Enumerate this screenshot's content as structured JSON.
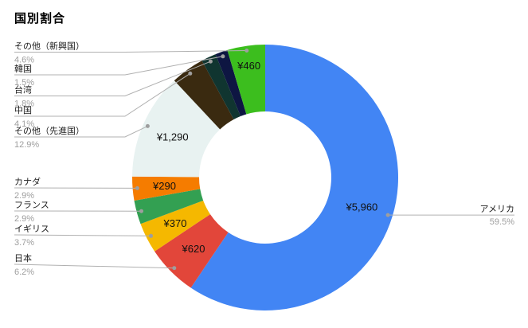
{
  "title": "国別割合",
  "chart_data": {
    "type": "pie",
    "subtype": "donut",
    "title": "国別割合",
    "currency_prefix": "¥",
    "start_angle_deg": 0,
    "direction": "clockwise",
    "slices": [
      {
        "label": "アメリカ",
        "pct": "59.5%",
        "value_label": "¥5,960",
        "color": "#4285F4"
      },
      {
        "label": "日本",
        "pct": "6.2%",
        "value_label": "¥620",
        "color": "#E2463A"
      },
      {
        "label": "イギリス",
        "pct": "3.7%",
        "value_label": "¥370",
        "color": "#F5B800"
      },
      {
        "label": "フランス",
        "pct": "2.9%",
        "value_label": "",
        "color": "#33A052"
      },
      {
        "label": "カナダ",
        "pct": "2.9%",
        "value_label": "¥290",
        "color": "#F57C00"
      },
      {
        "label": "その他（先進国）",
        "pct": "12.9%",
        "value_label": "¥1,290",
        "color": "#E8F2F1"
      },
      {
        "label": "中国",
        "pct": "4.1%",
        "value_label": "",
        "color": "#3A2A10"
      },
      {
        "label": "台湾",
        "pct": "1.8%",
        "value_label": "",
        "color": "#103530"
      },
      {
        "label": "韓国",
        "pct": "1.5%",
        "value_label": "",
        "color": "#0E1642"
      },
      {
        "label": "その他（新興国）",
        "pct": "4.6%",
        "value_label": "¥460",
        "color": "#3CBE1E"
      }
    ]
  },
  "colors": {
    "background": "#FFFFFF",
    "label_text": "#212121",
    "percent_text": "#9E9E9E",
    "leader_line": "#B0B0B0",
    "leader_dot": "#9E9E9E",
    "value_text": "#111111"
  }
}
